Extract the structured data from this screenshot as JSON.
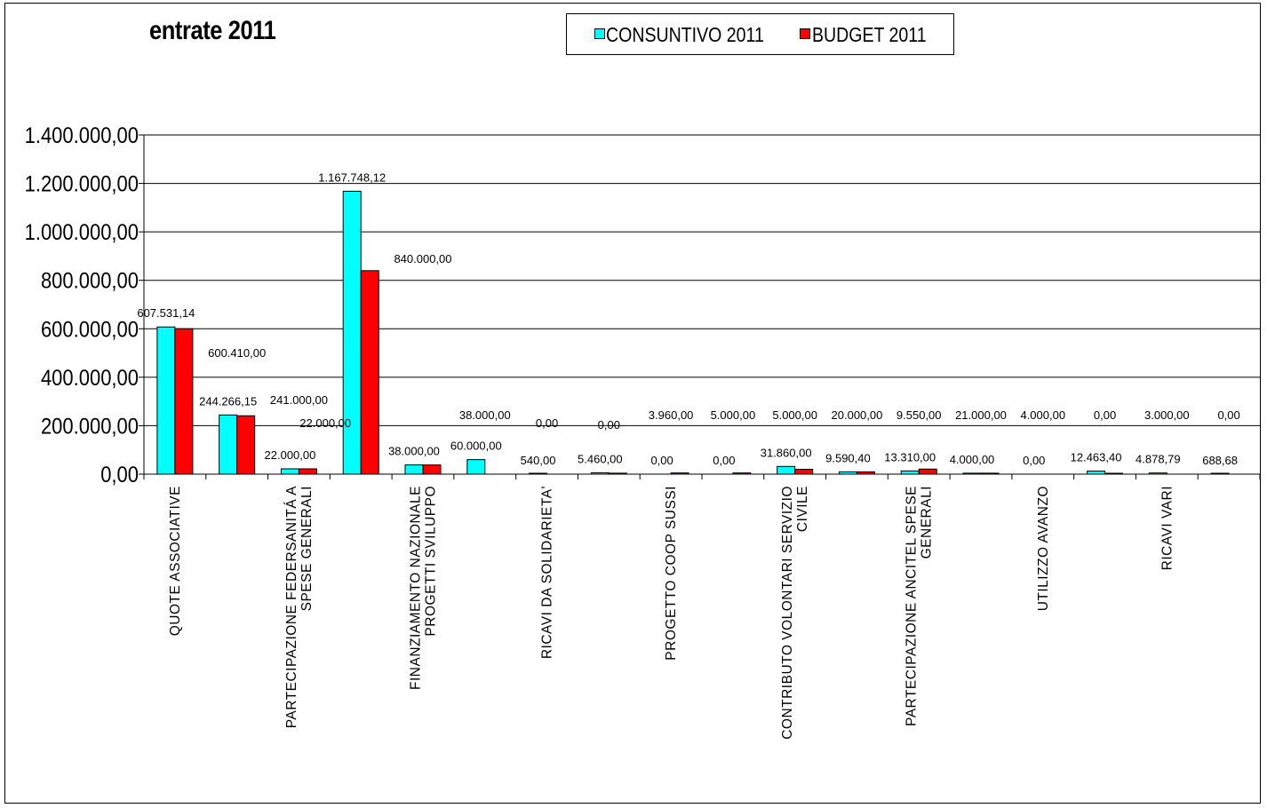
{
  "chart_data": {
    "type": "bar",
    "title": "entrate 2011",
    "ylim": [
      0,
      1400000
    ],
    "yticks": [
      0,
      200000,
      400000,
      600000,
      800000,
      1000000,
      1200000,
      1400000
    ],
    "ytick_labels": [
      "0,00",
      "200.000,00",
      "400.000,00",
      "600.000,00",
      "800.000,00",
      "1.000.000,00",
      "1.200.000,00",
      "1.400.000,00"
    ],
    "grid": true,
    "legend_position": "top",
    "category_labels": [
      [
        "QUOTE ASSOCIATIVE"
      ],
      [],
      [
        "PARTECIPAZIONE FEDERSANITÁ A",
        "SPESE GENERALI"
      ],
      [],
      [
        "FINANZIAMENTO NAZIONALE",
        "PROGETTI SVILUPPO"
      ],
      [],
      [
        "RICAVI DA SOLIDARIETA'"
      ],
      [],
      [
        "PROGETTO COOP SUSSI"
      ],
      [],
      [
        "CONTRIBUTO VOLONTARI SERVIZIO",
        "CIVILE"
      ],
      [],
      [
        "PARTECIPAZIONE ANCITEL  SPESE",
        "GENERALI"
      ],
      [],
      [
        "UTILIZZO AVANZO"
      ],
      [],
      [
        "RICAVI VARI"
      ],
      []
    ],
    "series": [
      {
        "name": "CONSUNTIVO 2011",
        "color": "#00ffff",
        "values": [
          607531.14,
          244266.15,
          22000.0,
          1167748.12,
          38000.0,
          60000.0,
          540.0,
          5460.0,
          0.0,
          0.0,
          31860.0,
          9590.4,
          13310.0,
          4000.0,
          0.0,
          12463.4,
          4878.79,
          688.68
        ],
        "labels": [
          "607.531,14",
          "244.266,15",
          "22.000,00",
          "1.167.748,12",
          "38.000,00",
          "60.000,00",
          "540,00",
          "5.460,00",
          "0,00",
          "0,00",
          "31.860,00",
          "9.590,40",
          "13.310,00",
          "4.000,00",
          "0,00",
          "12.463,40",
          "4.878,79",
          "688,68"
        ]
      },
      {
        "name": "BUDGET 2011",
        "color": "#ff0000",
        "values": [
          600410.0,
          241000.0,
          22000.0,
          840000.0,
          38000.0,
          0.0,
          0.0,
          3960.0,
          5000.0,
          5000.0,
          20000.0,
          9550.0,
          21000.0,
          4000.0,
          0.0,
          3000.0,
          0.0,
          0.0
        ],
        "labels": [
          "600.410,00",
          "241.000,00",
          "22.000,00",
          "840.000,00",
          "38.000,00",
          "0,00",
          "0,00",
          "3.960,00",
          "5.000,00",
          "5.000,00",
          "20.000,00",
          "9.550,00",
          "21.000,00",
          "4.000,00",
          "0,00",
          "3.000,00",
          "0,00",
          "0,00"
        ]
      }
    ]
  }
}
